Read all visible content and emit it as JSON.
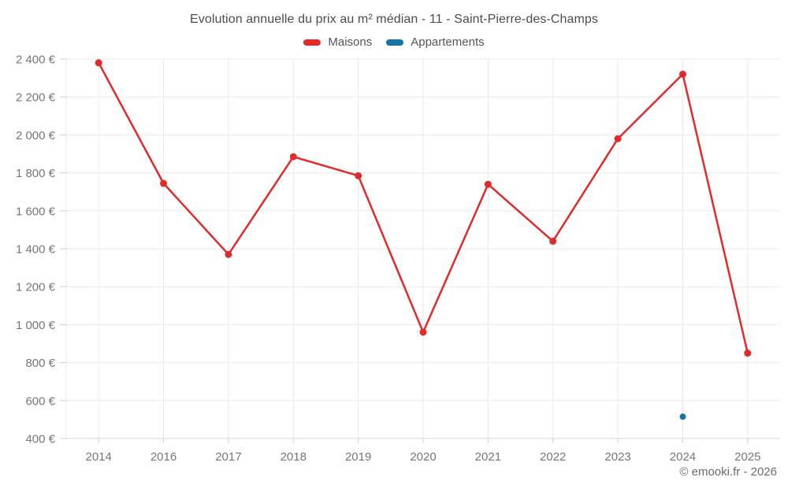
{
  "title": "Evolution annuelle du prix au m² médian - 11 - Saint-Pierre-des-Champs",
  "footer": "© emooki.fr - 2026",
  "colors": {
    "maisons": "#e12b2b",
    "appartements": "#1673a3",
    "grid": "#e9e9e9",
    "axis_line": "#d9d9d9",
    "tick_mark": "#cfcfcf",
    "tick_text": "#767676",
    "background": "#ffffff"
  },
  "chart_data": {
    "type": "line",
    "title": "Evolution annuelle du prix au m² médian - 11 - Saint-Pierre-des-Champs",
    "xlabel": "",
    "ylabel": "",
    "categories": [
      "2014",
      "2016",
      "2017",
      "2018",
      "2019",
      "2020",
      "2021",
      "2022",
      "2023",
      "2024",
      "2025"
    ],
    "series": [
      {
        "name": "Maisons",
        "color": "#e12b2b",
        "marker_radius": 4.5,
        "line_width": 2.5,
        "values": [
          2380,
          1745,
          1370,
          1885,
          1785,
          960,
          1740,
          1440,
          1980,
          2320,
          850
        ]
      },
      {
        "name": "Appartements",
        "color": "#1673a3",
        "marker_radius": 4,
        "line_width": 2.5,
        "values": [
          null,
          null,
          null,
          null,
          null,
          null,
          null,
          null,
          null,
          515,
          null
        ]
      }
    ],
    "ylim": [
      400,
      2400
    ],
    "y_ticks": [
      {
        "value": 2400,
        "label": "2 400 €"
      },
      {
        "value": 2200,
        "label": "2 200 €"
      },
      {
        "value": 2000,
        "label": "2 000 €"
      },
      {
        "value": 1800,
        "label": "1 800 €"
      },
      {
        "value": 1600,
        "label": "1 600 €"
      },
      {
        "value": 1400,
        "label": "1 400 €"
      },
      {
        "value": 1200,
        "label": "1 200 €"
      },
      {
        "value": 1000,
        "label": "1 000 €"
      },
      {
        "value": 800,
        "label": "800 €"
      },
      {
        "value": 600,
        "label": "600 €"
      },
      {
        "value": 400,
        "label": "400 €"
      }
    ],
    "grid": true,
    "legend_position": "top",
    "currency": "€"
  }
}
